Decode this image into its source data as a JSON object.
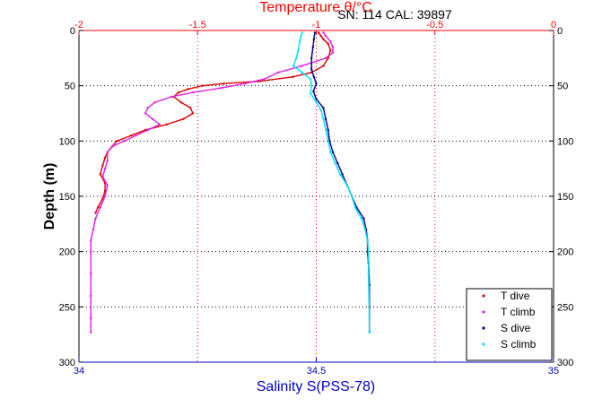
{
  "header": {
    "serial_calibration": "SN: 114  CAL: 39897"
  },
  "colors": {
    "temperature_axis": "#ff0000",
    "salinity_axis": "#0000cc",
    "depth_axis": "#000000",
    "t_dive": "#dd0000",
    "t_climb": "#e020e0",
    "s_dive": "#000090",
    "s_climb": "#00e0ff"
  },
  "chart_data": {
    "type": "scatter",
    "title": "",
    "top_axis": {
      "label": "Temperature θ/°C",
      "range": [
        -2,
        0
      ],
      "ticks": [
        -2,
        -1.5,
        -1,
        -0.5,
        0
      ],
      "tick_labels": [
        "-2",
        "-1.5",
        "-1",
        "-0.5",
        "0"
      ]
    },
    "bottom_axis": {
      "label": "Salinity S(PSS-78)",
      "range": [
        34,
        35
      ],
      "ticks": [
        34,
        34.5,
        35
      ],
      "tick_labels": [
        "34",
        "34.5",
        "35"
      ]
    },
    "y_axis": {
      "label": "Depth (m)",
      "range": [
        0,
        300
      ],
      "reversed": true,
      "ticks": [
        0,
        50,
        100,
        150,
        200,
        250,
        300
      ],
      "tick_labels": [
        "0",
        "50",
        "100",
        "150",
        "200",
        "250",
        "300"
      ]
    },
    "grid": {
      "temperature_lines_dotted_red": [
        -1.5,
        -1,
        -0.5
      ],
      "depth_lines_dotted_black": [
        50,
        100,
        150,
        200,
        250
      ]
    },
    "legend": {
      "position": "bottom-right",
      "entries": [
        "T dive",
        "T climb",
        "S dive",
        "S climb"
      ]
    },
    "series": [
      {
        "name": "T dive",
        "axis": "temperature",
        "marker": "dot",
        "points": [
          [
            -0.99,
            2
          ],
          [
            -0.98,
            5
          ],
          [
            -0.97,
            8
          ],
          [
            -0.95,
            12
          ],
          [
            -0.94,
            18
          ],
          [
            -0.95,
            25
          ],
          [
            -0.97,
            32
          ],
          [
            -1.02,
            38
          ],
          [
            -1.1,
            42
          ],
          [
            -1.24,
            46
          ],
          [
            -1.39,
            48
          ],
          [
            -1.48,
            50
          ],
          [
            -1.54,
            53
          ],
          [
            -1.58,
            56
          ],
          [
            -1.6,
            60
          ],
          [
            -1.57,
            65
          ],
          [
            -1.53,
            70
          ],
          [
            -1.52,
            75
          ],
          [
            -1.56,
            80
          ],
          [
            -1.63,
            85
          ],
          [
            -1.72,
            90
          ],
          [
            -1.78,
            95
          ],
          [
            -1.84,
            100
          ],
          [
            -1.86,
            105
          ],
          [
            -1.88,
            110
          ],
          [
            -1.89,
            115
          ],
          [
            -1.9,
            122
          ],
          [
            -1.91,
            130
          ],
          [
            -1.89,
            138
          ],
          [
            -1.89,
            145
          ],
          [
            -1.9,
            152
          ],
          [
            -1.92,
            160
          ],
          [
            -1.93,
            165
          ]
        ]
      },
      {
        "name": "T climb",
        "axis": "temperature",
        "marker": "dot",
        "points": [
          [
            -0.97,
            2
          ],
          [
            -0.96,
            5
          ],
          [
            -0.94,
            10
          ],
          [
            -0.93,
            15
          ],
          [
            -0.93,
            20
          ],
          [
            -0.96,
            25
          ],
          [
            -1.06,
            32
          ],
          [
            -1.16,
            38
          ],
          [
            -1.22,
            44
          ],
          [
            -1.3,
            48
          ],
          [
            -1.4,
            52
          ],
          [
            -1.52,
            56
          ],
          [
            -1.61,
            60
          ],
          [
            -1.68,
            65
          ],
          [
            -1.71,
            70
          ],
          [
            -1.72,
            75
          ],
          [
            -1.69,
            80
          ],
          [
            -1.66,
            85
          ],
          [
            -1.71,
            90
          ],
          [
            -1.76,
            95
          ],
          [
            -1.81,
            100
          ],
          [
            -1.86,
            105
          ],
          [
            -1.88,
            110
          ],
          [
            -1.88,
            118
          ],
          [
            -1.89,
            125
          ],
          [
            -1.9,
            132
          ],
          [
            -1.88,
            140
          ],
          [
            -1.89,
            150
          ],
          [
            -1.91,
            160
          ],
          [
            -1.93,
            170
          ],
          [
            -1.94,
            180
          ],
          [
            -1.95,
            190
          ],
          [
            -1.95,
            200
          ],
          [
            -1.95,
            220
          ],
          [
            -1.95,
            240
          ],
          [
            -1.95,
            260
          ],
          [
            -1.95,
            273
          ]
        ]
      },
      {
        "name": "S dive",
        "axis": "salinity",
        "marker": "dot",
        "points": [
          [
            34.497,
            2
          ],
          [
            34.495,
            8
          ],
          [
            34.493,
            15
          ],
          [
            34.49,
            25
          ],
          [
            34.49,
            35
          ],
          [
            34.495,
            42
          ],
          [
            34.5,
            48
          ],
          [
            34.494,
            55
          ],
          [
            34.5,
            62
          ],
          [
            34.515,
            70
          ],
          [
            34.52,
            80
          ],
          [
            34.525,
            90
          ],
          [
            34.528,
            100
          ],
          [
            34.535,
            110
          ],
          [
            34.545,
            120
          ],
          [
            34.555,
            130
          ],
          [
            34.565,
            140
          ],
          [
            34.575,
            150
          ],
          [
            34.585,
            160
          ],
          [
            34.6,
            170
          ],
          [
            34.605,
            180
          ],
          [
            34.608,
            190
          ],
          [
            34.608,
            200
          ],
          [
            34.61,
            210
          ],
          [
            34.612,
            230
          ],
          [
            34.612,
            250
          ],
          [
            34.612,
            273
          ]
        ]
      },
      {
        "name": "S climb",
        "axis": "salinity",
        "marker": "dot",
        "points": [
          [
            34.47,
            2
          ],
          [
            34.468,
            5
          ],
          [
            34.465,
            10
          ],
          [
            34.462,
            18
          ],
          [
            34.458,
            25
          ],
          [
            34.452,
            32
          ],
          [
            34.47,
            38
          ],
          [
            34.488,
            44
          ],
          [
            34.49,
            50
          ],
          [
            34.488,
            57
          ],
          [
            34.5,
            65
          ],
          [
            34.51,
            72
          ],
          [
            34.515,
            80
          ],
          [
            34.52,
            90
          ],
          [
            34.525,
            100
          ],
          [
            34.53,
            110
          ],
          [
            34.54,
            120
          ],
          [
            34.55,
            130
          ],
          [
            34.565,
            140
          ],
          [
            34.575,
            150
          ],
          [
            34.582,
            160
          ],
          [
            34.595,
            170
          ],
          [
            34.603,
            180
          ],
          [
            34.608,
            190
          ],
          [
            34.61,
            200
          ],
          [
            34.61,
            220
          ],
          [
            34.611,
            240
          ],
          [
            34.612,
            260
          ],
          [
            34.612,
            273
          ]
        ]
      }
    ]
  }
}
